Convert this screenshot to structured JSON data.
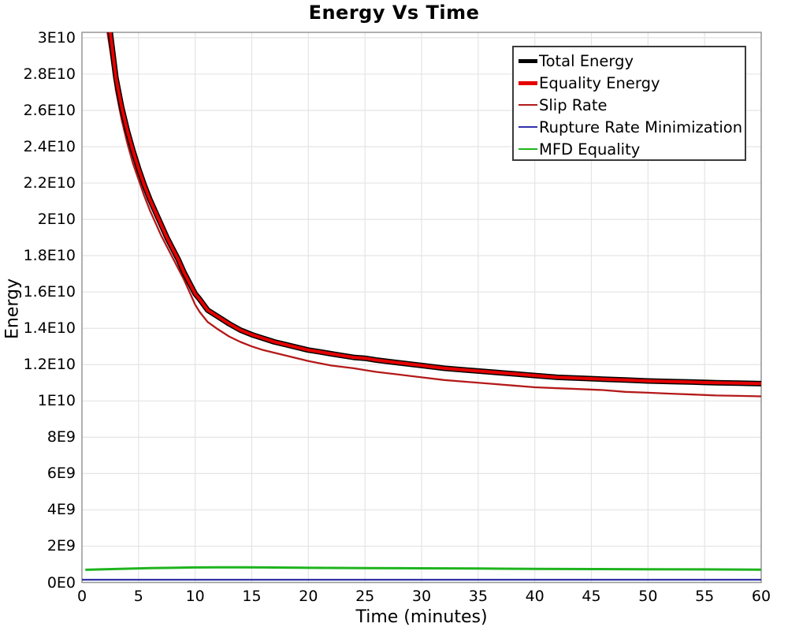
{
  "chart_data": {
    "type": "line",
    "title": "Energy Vs Time",
    "xlabel": "Time (minutes)",
    "ylabel": "Energy",
    "xlim": [
      0,
      60
    ],
    "ylim": [
      0,
      30300000000
    ],
    "grid": true,
    "legend_position": "top-right",
    "x_ticks": {
      "values": [
        0,
        5,
        10,
        15,
        20,
        25,
        30,
        35,
        40,
        45,
        50,
        55,
        60
      ],
      "labels": [
        "0",
        "5",
        "10",
        "15",
        "20",
        "25",
        "30",
        "35",
        "40",
        "45",
        "50",
        "55",
        "60"
      ]
    },
    "y_ticks": {
      "values_e9": [
        0,
        2,
        4,
        6,
        8,
        10,
        12,
        14,
        16,
        18,
        20,
        22,
        24,
        26,
        28,
        30
      ],
      "labels": [
        "0E0",
        "2E9",
        "4E9",
        "6E9",
        "8E9",
        "1E10",
        "1.2E10",
        "1.4E10",
        "1.6E10",
        "1.8E10",
        "2E10",
        "2.2E10",
        "2.4E10",
        "2.6E10",
        "2.8E10",
        "3E10"
      ]
    },
    "series": [
      {
        "name": "Total Energy",
        "color": "#000000",
        "line_width": 7,
        "points_e9": [
          [
            2.2,
            32
          ],
          [
            2.5,
            30.3
          ],
          [
            3,
            27.8
          ],
          [
            3.5,
            26.2
          ],
          [
            4,
            24.9
          ],
          [
            4.5,
            23.8
          ],
          [
            5,
            22.8
          ],
          [
            5.5,
            21.9
          ],
          [
            6,
            21.1
          ],
          [
            6.5,
            20.4
          ],
          [
            7,
            19.7
          ],
          [
            7.5,
            19.0
          ],
          [
            8,
            18.4
          ],
          [
            8.5,
            17.8
          ],
          [
            9,
            17.1
          ],
          [
            9.5,
            16.5
          ],
          [
            10,
            15.9
          ],
          [
            10.4,
            15.6
          ],
          [
            11.1,
            15.0
          ],
          [
            12,
            14.65
          ],
          [
            13,
            14.25
          ],
          [
            14,
            13.9
          ],
          [
            15,
            13.65
          ],
          [
            16,
            13.45
          ],
          [
            17,
            13.25
          ],
          [
            18,
            13.1
          ],
          [
            19,
            12.95
          ],
          [
            20,
            12.8
          ],
          [
            21,
            12.7
          ],
          [
            22,
            12.6
          ],
          [
            23,
            12.5
          ],
          [
            24,
            12.4
          ],
          [
            25,
            12.35
          ],
          [
            26,
            12.25
          ],
          [
            28,
            12.1
          ],
          [
            30,
            11.95
          ],
          [
            32,
            11.8
          ],
          [
            34,
            11.7
          ],
          [
            36,
            11.6
          ],
          [
            38,
            11.5
          ],
          [
            40,
            11.4
          ],
          [
            42,
            11.3
          ],
          [
            44,
            11.25
          ],
          [
            46,
            11.2
          ],
          [
            48,
            11.15
          ],
          [
            50,
            11.1
          ],
          [
            52,
            11.07
          ],
          [
            54,
            11.04
          ],
          [
            56,
            11.0
          ],
          [
            58,
            10.98
          ],
          [
            60,
            10.95
          ]
        ]
      },
      {
        "name": "Equality Energy",
        "color": "#e60000",
        "line_width": 4,
        "points_e9": [
          [
            2.2,
            32
          ],
          [
            2.5,
            30.3
          ],
          [
            3,
            27.8
          ],
          [
            3.5,
            26.2
          ],
          [
            4,
            24.9
          ],
          [
            4.5,
            23.8
          ],
          [
            5,
            22.8
          ],
          [
            5.5,
            21.9
          ],
          [
            6,
            21.1
          ],
          [
            6.5,
            20.4
          ],
          [
            7,
            19.7
          ],
          [
            7.5,
            19.0
          ],
          [
            8,
            18.4
          ],
          [
            8.5,
            17.8
          ],
          [
            9,
            17.1
          ],
          [
            9.5,
            16.5
          ],
          [
            10,
            15.9
          ],
          [
            10.4,
            15.6
          ],
          [
            11.1,
            15.0
          ],
          [
            12,
            14.65
          ],
          [
            13,
            14.25
          ],
          [
            14,
            13.9
          ],
          [
            15,
            13.65
          ],
          [
            16,
            13.45
          ],
          [
            17,
            13.25
          ],
          [
            18,
            13.1
          ],
          [
            19,
            12.95
          ],
          [
            20,
            12.8
          ],
          [
            21,
            12.7
          ],
          [
            22,
            12.6
          ],
          [
            23,
            12.5
          ],
          [
            24,
            12.4
          ],
          [
            25,
            12.35
          ],
          [
            26,
            12.25
          ],
          [
            28,
            12.1
          ],
          [
            30,
            11.95
          ],
          [
            32,
            11.8
          ],
          [
            34,
            11.7
          ],
          [
            36,
            11.6
          ],
          [
            38,
            11.5
          ],
          [
            40,
            11.4
          ],
          [
            42,
            11.3
          ],
          [
            44,
            11.25
          ],
          [
            46,
            11.2
          ],
          [
            48,
            11.15
          ],
          [
            50,
            11.1
          ],
          [
            52,
            11.07
          ],
          [
            54,
            11.04
          ],
          [
            56,
            11.0
          ],
          [
            58,
            10.98
          ],
          [
            60,
            10.95
          ]
        ]
      },
      {
        "name": "Slip Rate",
        "color": "#b41919",
        "line_width": 2.3,
        "points_e9": [
          [
            1.9,
            32
          ],
          [
            2.2,
            30.5
          ],
          [
            2.5,
            29.3
          ],
          [
            3,
            27.1
          ],
          [
            3.5,
            25.5
          ],
          [
            4,
            24.2
          ],
          [
            4.5,
            23.1
          ],
          [
            5,
            22.2
          ],
          [
            5.5,
            21.3
          ],
          [
            6,
            20.5
          ],
          [
            6.5,
            19.8
          ],
          [
            7,
            19.1
          ],
          [
            7.5,
            18.5
          ],
          [
            8,
            17.9
          ],
          [
            8.5,
            17.3
          ],
          [
            9,
            16.7
          ],
          [
            9.5,
            16.0
          ],
          [
            10,
            15.3
          ],
          [
            10.4,
            14.9
          ],
          [
            11.1,
            14.35
          ],
          [
            12,
            13.95
          ],
          [
            13,
            13.55
          ],
          [
            14,
            13.25
          ],
          [
            15,
            13.0
          ],
          [
            16,
            12.8
          ],
          [
            17,
            12.65
          ],
          [
            18,
            12.5
          ],
          [
            19,
            12.35
          ],
          [
            20,
            12.2
          ],
          [
            22,
            11.95
          ],
          [
            24,
            11.8
          ],
          [
            25,
            11.7
          ],
          [
            26,
            11.6
          ],
          [
            28,
            11.45
          ],
          [
            30,
            11.3
          ],
          [
            32,
            11.15
          ],
          [
            34,
            11.05
          ],
          [
            36,
            10.95
          ],
          [
            38,
            10.85
          ],
          [
            40,
            10.75
          ],
          [
            42,
            10.7
          ],
          [
            44,
            10.65
          ],
          [
            46,
            10.6
          ],
          [
            48,
            10.5
          ],
          [
            50,
            10.45
          ],
          [
            52,
            10.4
          ],
          [
            54,
            10.35
          ],
          [
            56,
            10.3
          ],
          [
            58,
            10.28
          ],
          [
            60,
            10.25
          ]
        ]
      },
      {
        "name": "Rupture Rate Minimization",
        "color": "#3232a8",
        "line_width": 2.3,
        "points_e9": [
          [
            0,
            0.15
          ],
          [
            10,
            0.15
          ],
          [
            20,
            0.15
          ],
          [
            30,
            0.15
          ],
          [
            40,
            0.15
          ],
          [
            50,
            0.15
          ],
          [
            60,
            0.15
          ]
        ]
      },
      {
        "name": "MFD Equality",
        "color": "#1eb41e",
        "line_width": 3,
        "points_e9": [
          [
            0.3,
            0.7
          ],
          [
            2,
            0.73
          ],
          [
            4,
            0.76
          ],
          [
            6,
            0.79
          ],
          [
            8,
            0.81
          ],
          [
            10,
            0.83
          ],
          [
            12,
            0.84
          ],
          [
            14,
            0.84
          ],
          [
            16,
            0.83
          ],
          [
            18,
            0.82
          ],
          [
            20,
            0.81
          ],
          [
            25,
            0.79
          ],
          [
            30,
            0.78
          ],
          [
            35,
            0.77
          ],
          [
            40,
            0.75
          ],
          [
            45,
            0.74
          ],
          [
            50,
            0.73
          ],
          [
            55,
            0.72
          ],
          [
            60,
            0.71
          ]
        ]
      }
    ],
    "legend": {
      "entries": [
        {
          "label": "Total Energy",
          "color": "#000000",
          "sample_thickness": 5
        },
        {
          "label": "Equality Energy",
          "color": "#e60000",
          "sample_thickness": 5
        },
        {
          "label": "Slip Rate",
          "color": "#b41919",
          "sample_thickness": 2
        },
        {
          "label": "Rupture Rate Minimization",
          "color": "#3232a8",
          "sample_thickness": 2
        },
        {
          "label": "MFD Equality",
          "color": "#1eb41e",
          "sample_thickness": 2
        }
      ]
    },
    "colors": {
      "grid": "#e4e4e4",
      "plot_border": "#959595",
      "background": "#ffffff",
      "text": "#000000"
    }
  }
}
